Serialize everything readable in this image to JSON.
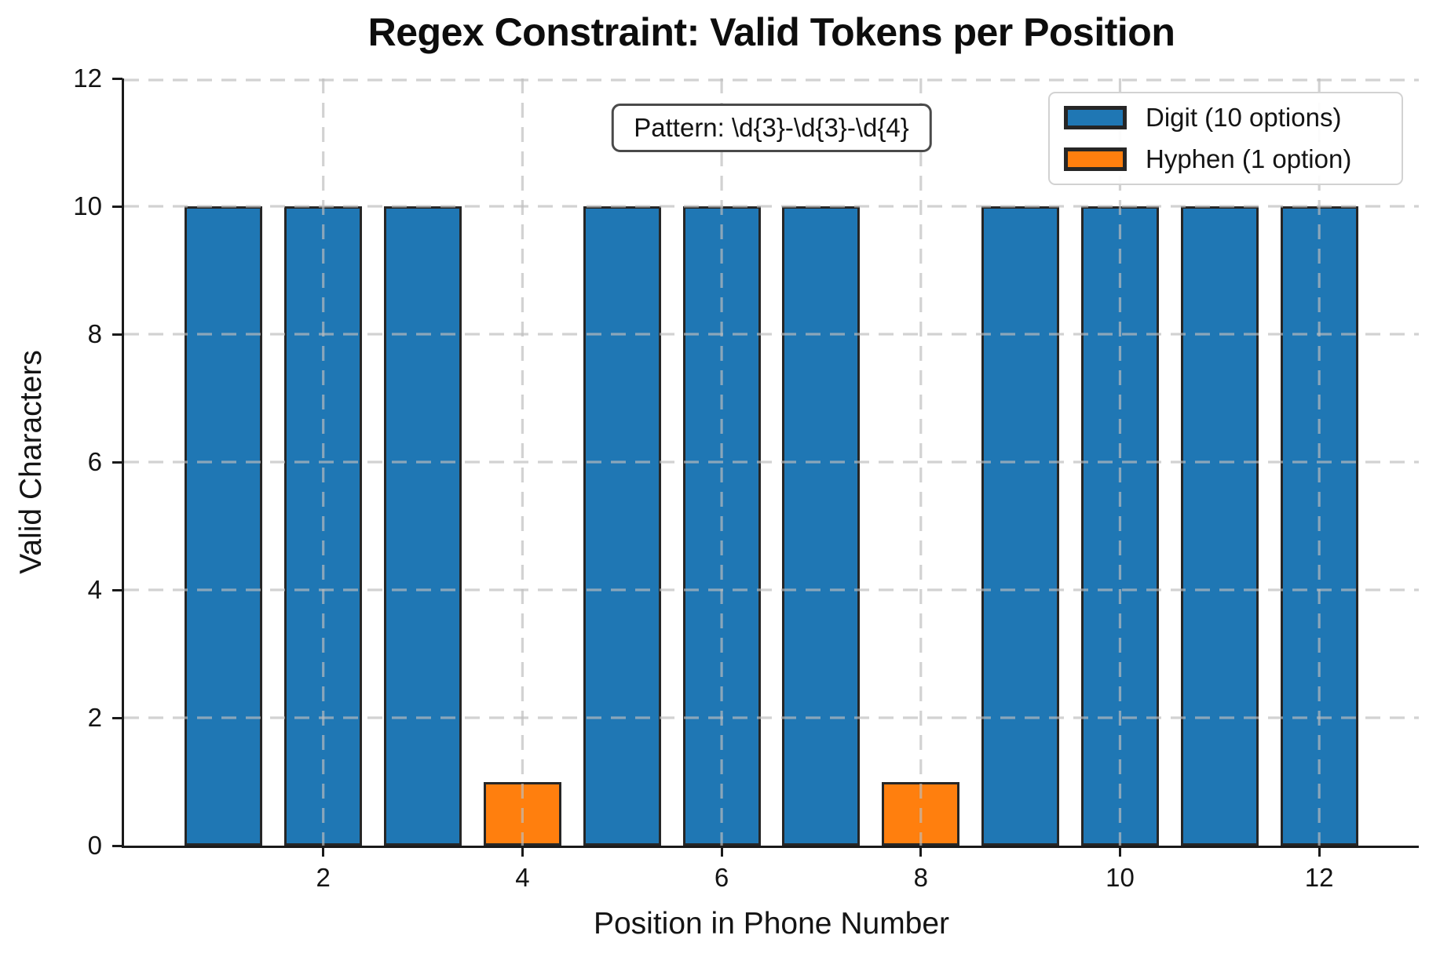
{
  "chart_data": {
    "type": "bar",
    "title": "Regex Constraint: Valid Tokens per Position",
    "xlabel": "Position in Phone Number",
    "ylabel": "Valid Characters",
    "x": [
      1,
      2,
      3,
      4,
      5,
      6,
      7,
      8,
      9,
      10,
      11,
      12
    ],
    "values": [
      10,
      10,
      10,
      1,
      10,
      10,
      10,
      1,
      10,
      10,
      10,
      10
    ],
    "series_by_position": [
      "digit",
      "digit",
      "digit",
      "hyphen",
      "digit",
      "digit",
      "digit",
      "hyphen",
      "digit",
      "digit",
      "digit",
      "digit"
    ],
    "xlim": [
      0,
      13
    ],
    "ylim": [
      0,
      12
    ],
    "xticks": [
      2,
      4,
      6,
      8,
      10,
      12
    ],
    "yticks": [
      0,
      2,
      4,
      6,
      8,
      10,
      12
    ],
    "grid": true,
    "grid_style": "dashed, light gray, drawn above bars",
    "bar_width": 0.78,
    "colors": {
      "digit": "#1f77b4",
      "hyphen": "#ff7f0e",
      "bar_edge": "#262626",
      "grid": "#bdbdbd",
      "spine": "#1a1a1a"
    },
    "legend": {
      "position": "upper right",
      "items": [
        {
          "label": "Digit (10 options)",
          "color": "#1f77b4"
        },
        {
          "label": "Hyphen (1 option)",
          "color": "#ff7f0e"
        }
      ]
    },
    "annotation": {
      "text": "Pattern: \\d{3}-\\d{3}-\\d{4}"
    }
  }
}
